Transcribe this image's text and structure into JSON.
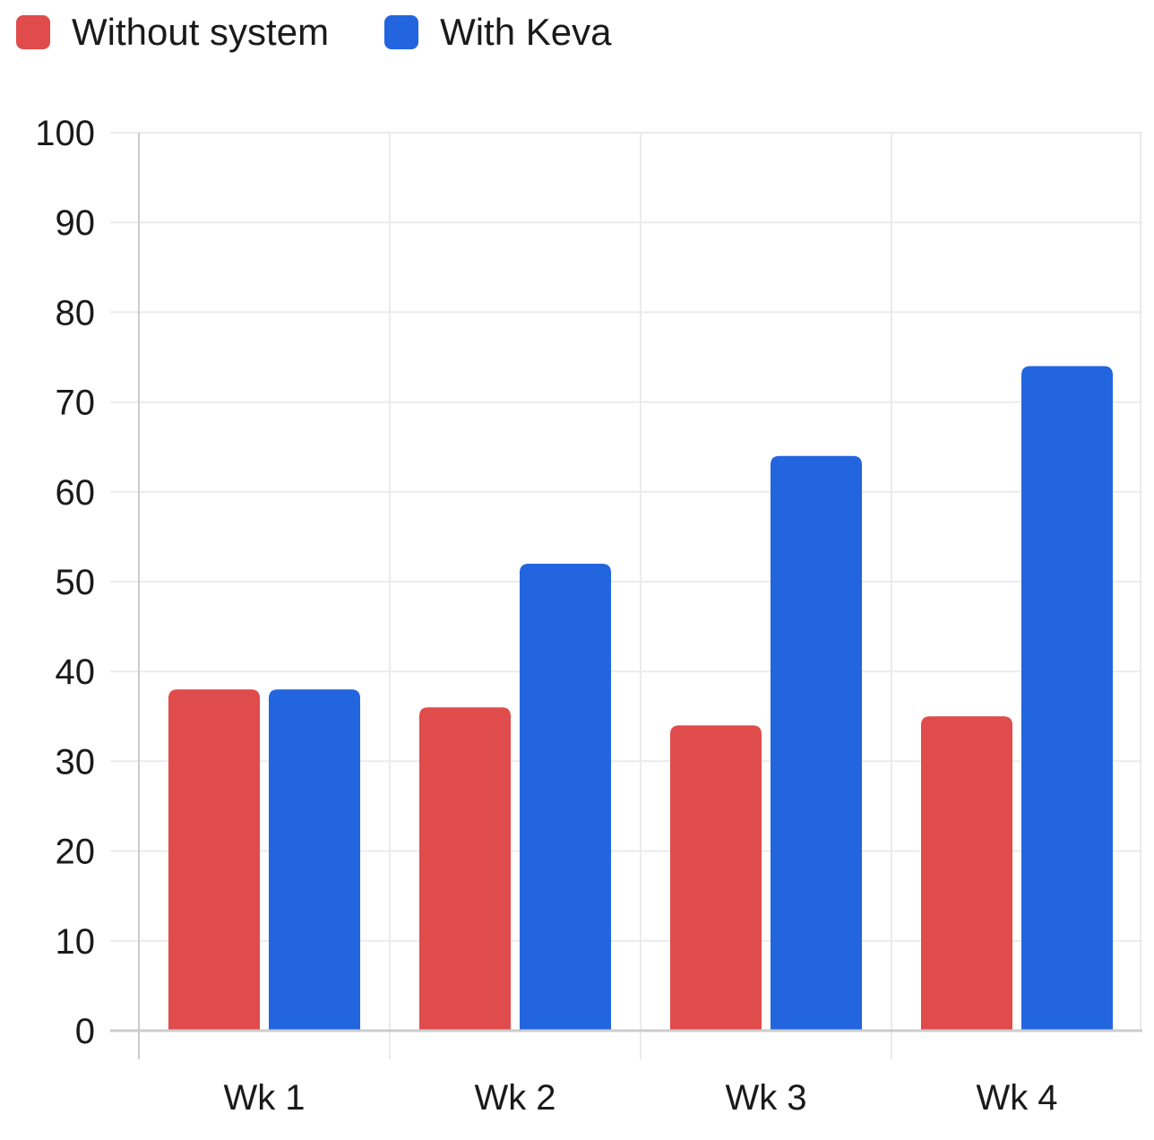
{
  "chart_data": {
    "type": "bar",
    "title": "",
    "xlabel": "",
    "ylabel": "",
    "categories": [
      "Wk 1",
      "Wk 2",
      "Wk 3",
      "Wk 4"
    ],
    "series": [
      {
        "name": "Without system",
        "color": "#e04b4b",
        "values": [
          38,
          36,
          34,
          35
        ]
      },
      {
        "name": "With Keva",
        "color": "#2265df",
        "values": [
          38,
          52,
          64,
          74
        ]
      }
    ],
    "ylim": [
      0,
      100
    ],
    "yticks": [
      0,
      10,
      20,
      30,
      40,
      50,
      60,
      70,
      80,
      90,
      100
    ],
    "ytick_labels": [
      "0",
      "10",
      "20",
      "30",
      "40",
      "50",
      "60",
      "70",
      "80",
      "90",
      "100"
    ],
    "grid": true,
    "legend_position": "top-left"
  }
}
